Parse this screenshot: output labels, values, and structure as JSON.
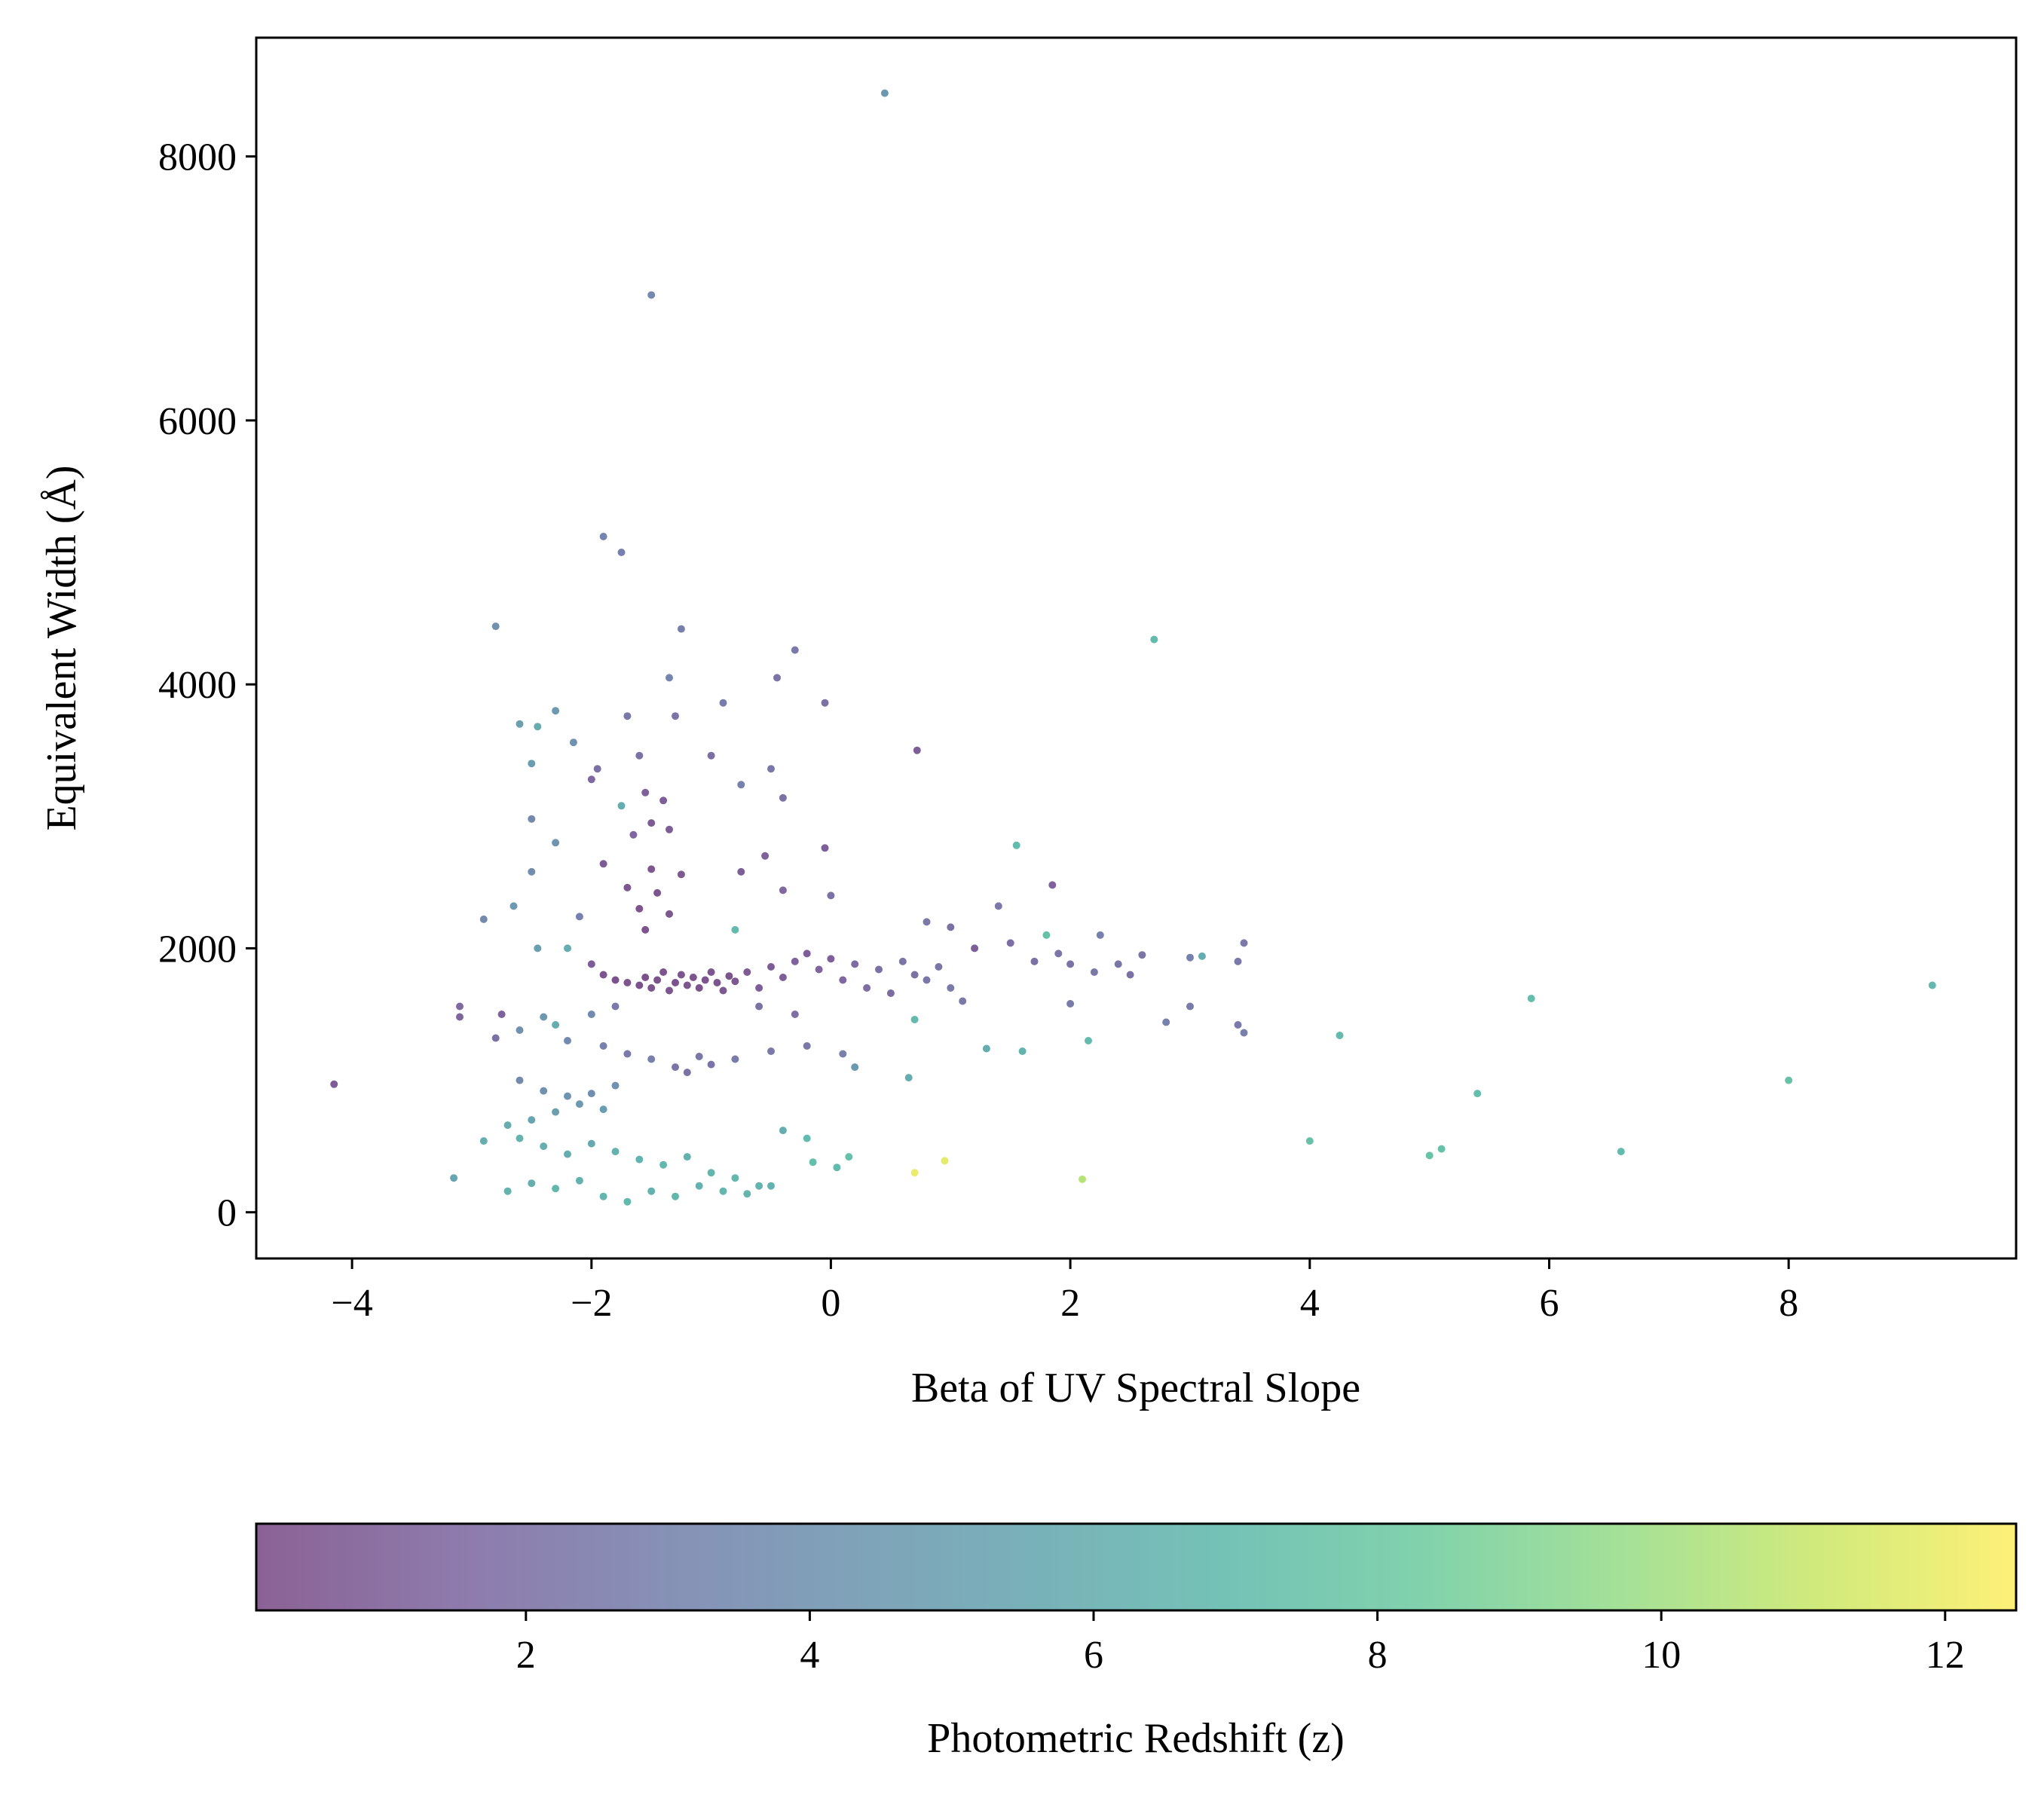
{
  "chart_data": {
    "type": "scatter",
    "xlabel": "Beta of UV Spectral Slope",
    "ylabel": "Equivalent Width (Å)",
    "xlim": [
      -4.8,
      9.9
    ],
    "ylim": [
      -350,
      8900
    ],
    "xticks": [
      -4,
      -2,
      0,
      2,
      4,
      6,
      8
    ],
    "xtick_labels": [
      "−4",
      "−2",
      "0",
      "2",
      "4",
      "6",
      "8"
    ],
    "yticks": [
      0,
      2000,
      4000,
      6000,
      8000
    ],
    "ytick_labels": [
      "0",
      "2000",
      "4000",
      "6000",
      "8000"
    ],
    "grid": false,
    "point_alpha": 0.7,
    "colorbar": {
      "label": "Photometric Redshift (z)",
      "colormap": "viridis",
      "range": [
        0.1,
        12.5
      ],
      "ticks": [
        2,
        4,
        6,
        8,
        10,
        12
      ],
      "tick_labels": [
        "2",
        "4",
        "6",
        "8",
        "10",
        "12"
      ],
      "orientation": "horizontal",
      "location": "bottom"
    },
    "points": [
      {
        "x": 0.45,
        "y": 8480,
        "z": 4.5
      },
      {
        "x": -1.5,
        "y": 6950,
        "z": 3.5
      },
      {
        "x": -1.9,
        "y": 5120,
        "z": 3.2
      },
      {
        "x": -1.75,
        "y": 5000,
        "z": 3.0
      },
      {
        "x": -2.8,
        "y": 4440,
        "z": 4.0
      },
      {
        "x": -1.25,
        "y": 4420,
        "z": 2.8
      },
      {
        "x": 2.7,
        "y": 4340,
        "z": 7.0
      },
      {
        "x": -0.3,
        "y": 4260,
        "z": 2.5
      },
      {
        "x": -1.35,
        "y": 4050,
        "z": 3.2
      },
      {
        "x": -0.45,
        "y": 4050,
        "z": 2.2
      },
      {
        "x": -0.05,
        "y": 3860,
        "z": 2.0
      },
      {
        "x": -0.9,
        "y": 3860,
        "z": 2.6
      },
      {
        "x": -2.3,
        "y": 3800,
        "z": 4.5
      },
      {
        "x": -2.6,
        "y": 3700,
        "z": 5.0
      },
      {
        "x": -2.45,
        "y": 3680,
        "z": 6.0
      },
      {
        "x": -1.7,
        "y": 3760,
        "z": 2.5
      },
      {
        "x": -1.3,
        "y": 3760,
        "z": 2.2
      },
      {
        "x": -2.15,
        "y": 3560,
        "z": 4.0
      },
      {
        "x": -1.6,
        "y": 3460,
        "z": 2.0
      },
      {
        "x": -1.0,
        "y": 3460,
        "z": 1.8
      },
      {
        "x": 0.72,
        "y": 3500,
        "z": 1.0
      },
      {
        "x": -0.5,
        "y": 3360,
        "z": 2.4
      },
      {
        "x": -1.95,
        "y": 3360,
        "z": 2.0
      },
      {
        "x": -2.5,
        "y": 3400,
        "z": 4.8
      },
      {
        "x": -0.75,
        "y": 3240,
        "z": 3.0
      },
      {
        "x": -1.55,
        "y": 3180,
        "z": 1.2
      },
      {
        "x": -1.4,
        "y": 3120,
        "z": 1.0
      },
      {
        "x": -0.4,
        "y": 3140,
        "z": 2.0
      },
      {
        "x": -2.0,
        "y": 3280,
        "z": 1.5
      },
      {
        "x": -2.5,
        "y": 2980,
        "z": 3.5
      },
      {
        "x": -1.5,
        "y": 2950,
        "z": 0.8
      },
      {
        "x": -1.35,
        "y": 2900,
        "z": 0.9
      },
      {
        "x": -1.65,
        "y": 2860,
        "z": 1.4
      },
      {
        "x": -2.3,
        "y": 2800,
        "z": 4.2
      },
      {
        "x": -1.75,
        "y": 3080,
        "z": 6.0
      },
      {
        "x": -0.55,
        "y": 2700,
        "z": 1.2
      },
      {
        "x": -0.05,
        "y": 2760,
        "z": 1.1
      },
      {
        "x": 1.55,
        "y": 2780,
        "z": 7.0
      },
      {
        "x": -1.9,
        "y": 2640,
        "z": 0.8
      },
      {
        "x": -1.5,
        "y": 2600,
        "z": 0.6
      },
      {
        "x": -1.25,
        "y": 2560,
        "z": 0.7
      },
      {
        "x": -0.75,
        "y": 2580,
        "z": 1.0
      },
      {
        "x": -2.5,
        "y": 2580,
        "z": 3.8
      },
      {
        "x": -1.7,
        "y": 2460,
        "z": 0.6
      },
      {
        "x": -1.45,
        "y": 2420,
        "z": 0.5
      },
      {
        "x": -0.4,
        "y": 2440,
        "z": 1.5
      },
      {
        "x": 0.0,
        "y": 2400,
        "z": 2.0
      },
      {
        "x": 1.85,
        "y": 2480,
        "z": 1.2
      },
      {
        "x": -2.65,
        "y": 2320,
        "z": 4.5
      },
      {
        "x": -1.6,
        "y": 2300,
        "z": 0.5
      },
      {
        "x": -1.35,
        "y": 2260,
        "z": 0.6
      },
      {
        "x": 1.4,
        "y": 2320,
        "z": 2.5
      },
      {
        "x": -2.9,
        "y": 2220,
        "z": 3.5
      },
      {
        "x": -2.1,
        "y": 2240,
        "z": 3.0
      },
      {
        "x": -1.55,
        "y": 2140,
        "z": 0.5
      },
      {
        "x": -0.8,
        "y": 2140,
        "z": 7.0
      },
      {
        "x": 0.8,
        "y": 2200,
        "z": 2.5
      },
      {
        "x": 1.0,
        "y": 2160,
        "z": 2.0
      },
      {
        "x": 1.8,
        "y": 2100,
        "z": 7.5
      },
      {
        "x": 2.25,
        "y": 2100,
        "z": 3.0
      },
      {
        "x": 3.45,
        "y": 2040,
        "z": 2.5
      },
      {
        "x": 1.2,
        "y": 2000,
        "z": 1.0
      },
      {
        "x": 1.5,
        "y": 2040,
        "z": 1.8
      },
      {
        "x": 2.6,
        "y": 1950,
        "z": 2.2
      },
      {
        "x": 3.0,
        "y": 1930,
        "z": 3.0
      },
      {
        "x": 3.1,
        "y": 1940,
        "z": 6.0
      },
      {
        "x": 3.4,
        "y": 1900,
        "z": 2.5
      },
      {
        "x": -2.45,
        "y": 2000,
        "z": 5.0
      },
      {
        "x": -2.2,
        "y": 2000,
        "z": 6.0
      },
      {
        "x": -2.0,
        "y": 1880,
        "z": 1.0
      },
      {
        "x": -1.9,
        "y": 1800,
        "z": 0.5
      },
      {
        "x": -1.8,
        "y": 1760,
        "z": 0.4
      },
      {
        "x": -1.7,
        "y": 1740,
        "z": 0.5
      },
      {
        "x": -1.6,
        "y": 1720,
        "z": 0.4
      },
      {
        "x": -1.55,
        "y": 1780,
        "z": 0.3
      },
      {
        "x": -1.5,
        "y": 1700,
        "z": 0.5
      },
      {
        "x": -1.45,
        "y": 1760,
        "z": 0.4
      },
      {
        "x": -1.4,
        "y": 1820,
        "z": 0.5
      },
      {
        "x": -1.35,
        "y": 1680,
        "z": 0.6
      },
      {
        "x": -1.3,
        "y": 1740,
        "z": 0.4
      },
      {
        "x": -1.25,
        "y": 1800,
        "z": 0.5
      },
      {
        "x": -1.2,
        "y": 1720,
        "z": 0.6
      },
      {
        "x": -1.15,
        "y": 1780,
        "z": 0.5
      },
      {
        "x": -1.1,
        "y": 1700,
        "z": 0.4
      },
      {
        "x": -1.05,
        "y": 1760,
        "z": 0.5
      },
      {
        "x": -1.0,
        "y": 1820,
        "z": 0.6
      },
      {
        "x": -0.95,
        "y": 1740,
        "z": 0.5
      },
      {
        "x": -0.9,
        "y": 1680,
        "z": 0.7
      },
      {
        "x": -0.85,
        "y": 1790,
        "z": 0.5
      },
      {
        "x": -0.8,
        "y": 1750,
        "z": 0.6
      },
      {
        "x": -0.7,
        "y": 1820,
        "z": 0.8
      },
      {
        "x": -0.6,
        "y": 1700,
        "z": 1.0
      },
      {
        "x": -0.5,
        "y": 1860,
        "z": 0.9
      },
      {
        "x": -0.4,
        "y": 1780,
        "z": 1.0
      },
      {
        "x": -0.3,
        "y": 1900,
        "z": 1.2
      },
      {
        "x": -0.2,
        "y": 1960,
        "z": 1.0
      },
      {
        "x": -0.1,
        "y": 1840,
        "z": 1.3
      },
      {
        "x": 0.0,
        "y": 1920,
        "z": 1.1
      },
      {
        "x": 0.1,
        "y": 1760,
        "z": 1.4
      },
      {
        "x": 0.2,
        "y": 1880,
        "z": 1.6
      },
      {
        "x": 0.3,
        "y": 1700,
        "z": 1.8
      },
      {
        "x": 0.4,
        "y": 1840,
        "z": 2.0
      },
      {
        "x": 0.5,
        "y": 1660,
        "z": 1.7
      },
      {
        "x": 0.6,
        "y": 1900,
        "z": 2.2
      },
      {
        "x": 0.7,
        "y": 1800,
        "z": 2.0
      },
      {
        "x": 0.8,
        "y": 1760,
        "z": 2.4
      },
      {
        "x": 0.9,
        "y": 1860,
        "z": 2.3
      },
      {
        "x": 1.0,
        "y": 1700,
        "z": 2.6
      },
      {
        "x": 1.7,
        "y": 1900,
        "z": 2.0
      },
      {
        "x": 1.9,
        "y": 1960,
        "z": 2.2
      },
      {
        "x": 2.0,
        "y": 1880,
        "z": 2.1
      },
      {
        "x": 2.2,
        "y": 1820,
        "z": 2.4
      },
      {
        "x": 2.4,
        "y": 1880,
        "z": 2.3
      },
      {
        "x": 2.5,
        "y": 1800,
        "z": 2.0
      },
      {
        "x": -3.1,
        "y": 1560,
        "z": 1.5
      },
      {
        "x": -3.1,
        "y": 1480,
        "z": 1.3
      },
      {
        "x": -2.75,
        "y": 1500,
        "z": 1.2
      },
      {
        "x": -2.6,
        "y": 1380,
        "z": 4.0
      },
      {
        "x": -2.4,
        "y": 1480,
        "z": 4.5
      },
      {
        "x": -2.3,
        "y": 1420,
        "z": 6.0
      },
      {
        "x": -2.0,
        "y": 1500,
        "z": 3.5
      },
      {
        "x": -1.8,
        "y": 1560,
        "z": 2.5
      },
      {
        "x": -0.6,
        "y": 1560,
        "z": 2.0
      },
      {
        "x": -0.3,
        "y": 1500,
        "z": 1.8
      },
      {
        "x": 0.7,
        "y": 1460,
        "z": 7.0
      },
      {
        "x": 1.1,
        "y": 1600,
        "z": 2.5
      },
      {
        "x": 2.0,
        "y": 1580,
        "z": 2.6
      },
      {
        "x": 2.8,
        "y": 1440,
        "z": 3.0
      },
      {
        "x": 3.0,
        "y": 1560,
        "z": 2.6
      },
      {
        "x": 3.4,
        "y": 1420,
        "z": 2.5
      },
      {
        "x": 3.45,
        "y": 1360,
        "z": 2.8
      },
      {
        "x": 4.25,
        "y": 1340,
        "z": 7.0
      },
      {
        "x": 5.85,
        "y": 1620,
        "z": 7.2
      },
      {
        "x": 9.2,
        "y": 1720,
        "z": 6.8
      },
      {
        "x": -2.8,
        "y": 1320,
        "z": 2.0
      },
      {
        "x": -2.2,
        "y": 1300,
        "z": 3.5
      },
      {
        "x": -1.9,
        "y": 1260,
        "z": 3.0
      },
      {
        "x": -1.7,
        "y": 1200,
        "z": 2.5
      },
      {
        "x": -1.5,
        "y": 1160,
        "z": 2.8
      },
      {
        "x": -1.3,
        "y": 1100,
        "z": 2.2
      },
      {
        "x": -1.2,
        "y": 1060,
        "z": 2.0
      },
      {
        "x": -1.1,
        "y": 1180,
        "z": 2.4
      },
      {
        "x": -1.0,
        "y": 1120,
        "z": 2.2
      },
      {
        "x": -0.8,
        "y": 1160,
        "z": 2.6
      },
      {
        "x": -0.5,
        "y": 1220,
        "z": 2.5
      },
      {
        "x": -0.2,
        "y": 1260,
        "z": 2.4
      },
      {
        "x": 0.1,
        "y": 1200,
        "z": 2.8
      },
      {
        "x": 0.2,
        "y": 1100,
        "z": 4.5
      },
      {
        "x": 0.65,
        "y": 1020,
        "z": 6.0
      },
      {
        "x": 1.3,
        "y": 1240,
        "z": 6.0
      },
      {
        "x": 1.6,
        "y": 1220,
        "z": 6.5
      },
      {
        "x": 2.15,
        "y": 1300,
        "z": 7.0
      },
      {
        "x": -4.15,
        "y": 970,
        "z": 1.0
      },
      {
        "x": -2.6,
        "y": 1000,
        "z": 3.5
      },
      {
        "x": -2.4,
        "y": 920,
        "z": 4.0
      },
      {
        "x": -2.2,
        "y": 880,
        "z": 4.2
      },
      {
        "x": -2.1,
        "y": 820,
        "z": 4.5
      },
      {
        "x": -2.0,
        "y": 900,
        "z": 3.8
      },
      {
        "x": -1.9,
        "y": 780,
        "z": 4.8
      },
      {
        "x": -1.8,
        "y": 960,
        "z": 4.0
      },
      {
        "x": -2.3,
        "y": 760,
        "z": 5.0
      },
      {
        "x": -2.5,
        "y": 700,
        "z": 5.5
      },
      {
        "x": -2.7,
        "y": 660,
        "z": 6.0
      },
      {
        "x": 5.4,
        "y": 900,
        "z": 7.2
      },
      {
        "x": 8.0,
        "y": 1000,
        "z": 7.5
      },
      {
        "x": -2.6,
        "y": 560,
        "z": 6.5
      },
      {
        "x": -2.4,
        "y": 500,
        "z": 6.2
      },
      {
        "x": -2.2,
        "y": 440,
        "z": 6.0
      },
      {
        "x": -2.0,
        "y": 520,
        "z": 5.8
      },
      {
        "x": -1.8,
        "y": 460,
        "z": 6.3
      },
      {
        "x": -1.6,
        "y": 400,
        "z": 6.5
      },
      {
        "x": -1.4,
        "y": 360,
        "z": 6.8
      },
      {
        "x": -1.2,
        "y": 420,
        "z": 6.4
      },
      {
        "x": -1.0,
        "y": 300,
        "z": 6.6
      },
      {
        "x": -0.8,
        "y": 260,
        "z": 6.8
      },
      {
        "x": -0.6,
        "y": 200,
        "z": 6.5
      },
      {
        "x": -0.4,
        "y": 620,
        "z": 6.0
      },
      {
        "x": -0.2,
        "y": 560,
        "z": 7.0
      },
      {
        "x": -0.15,
        "y": 380,
        "z": 7.2
      },
      {
        "x": 0.05,
        "y": 340,
        "z": 7.0
      },
      {
        "x": 0.15,
        "y": 420,
        "z": 7.5
      },
      {
        "x": -2.9,
        "y": 540,
        "z": 6.0
      },
      {
        "x": -3.15,
        "y": 260,
        "z": 5.5
      },
      {
        "x": -2.7,
        "y": 160,
        "z": 6.5
      },
      {
        "x": -2.5,
        "y": 220,
        "z": 6.2
      },
      {
        "x": -2.3,
        "y": 180,
        "z": 6.8
      },
      {
        "x": -2.1,
        "y": 240,
        "z": 6.4
      },
      {
        "x": -1.9,
        "y": 120,
        "z": 6.6
      },
      {
        "x": -1.7,
        "y": 80,
        "z": 6.9
      },
      {
        "x": -1.5,
        "y": 160,
        "z": 6.3
      },
      {
        "x": -1.3,
        "y": 120,
        "z": 6.7
      },
      {
        "x": -1.1,
        "y": 200,
        "z": 6.5
      },
      {
        "x": -0.9,
        "y": 160,
        "z": 6.8
      },
      {
        "x": -0.7,
        "y": 140,
        "z": 6.6
      },
      {
        "x": -0.5,
        "y": 200,
        "z": 6.4
      },
      {
        "x": 0.7,
        "y": 300,
        "z": 12.0
      },
      {
        "x": 0.95,
        "y": 390,
        "z": 11.8
      },
      {
        "x": 2.1,
        "y": 250,
        "z": 10.5
      },
      {
        "x": 4.0,
        "y": 540,
        "z": 7.5
      },
      {
        "x": 5.0,
        "y": 430,
        "z": 7.6
      },
      {
        "x": 5.1,
        "y": 480,
        "z": 7.4
      },
      {
        "x": 6.6,
        "y": 460,
        "z": 7.0
      }
    ]
  }
}
